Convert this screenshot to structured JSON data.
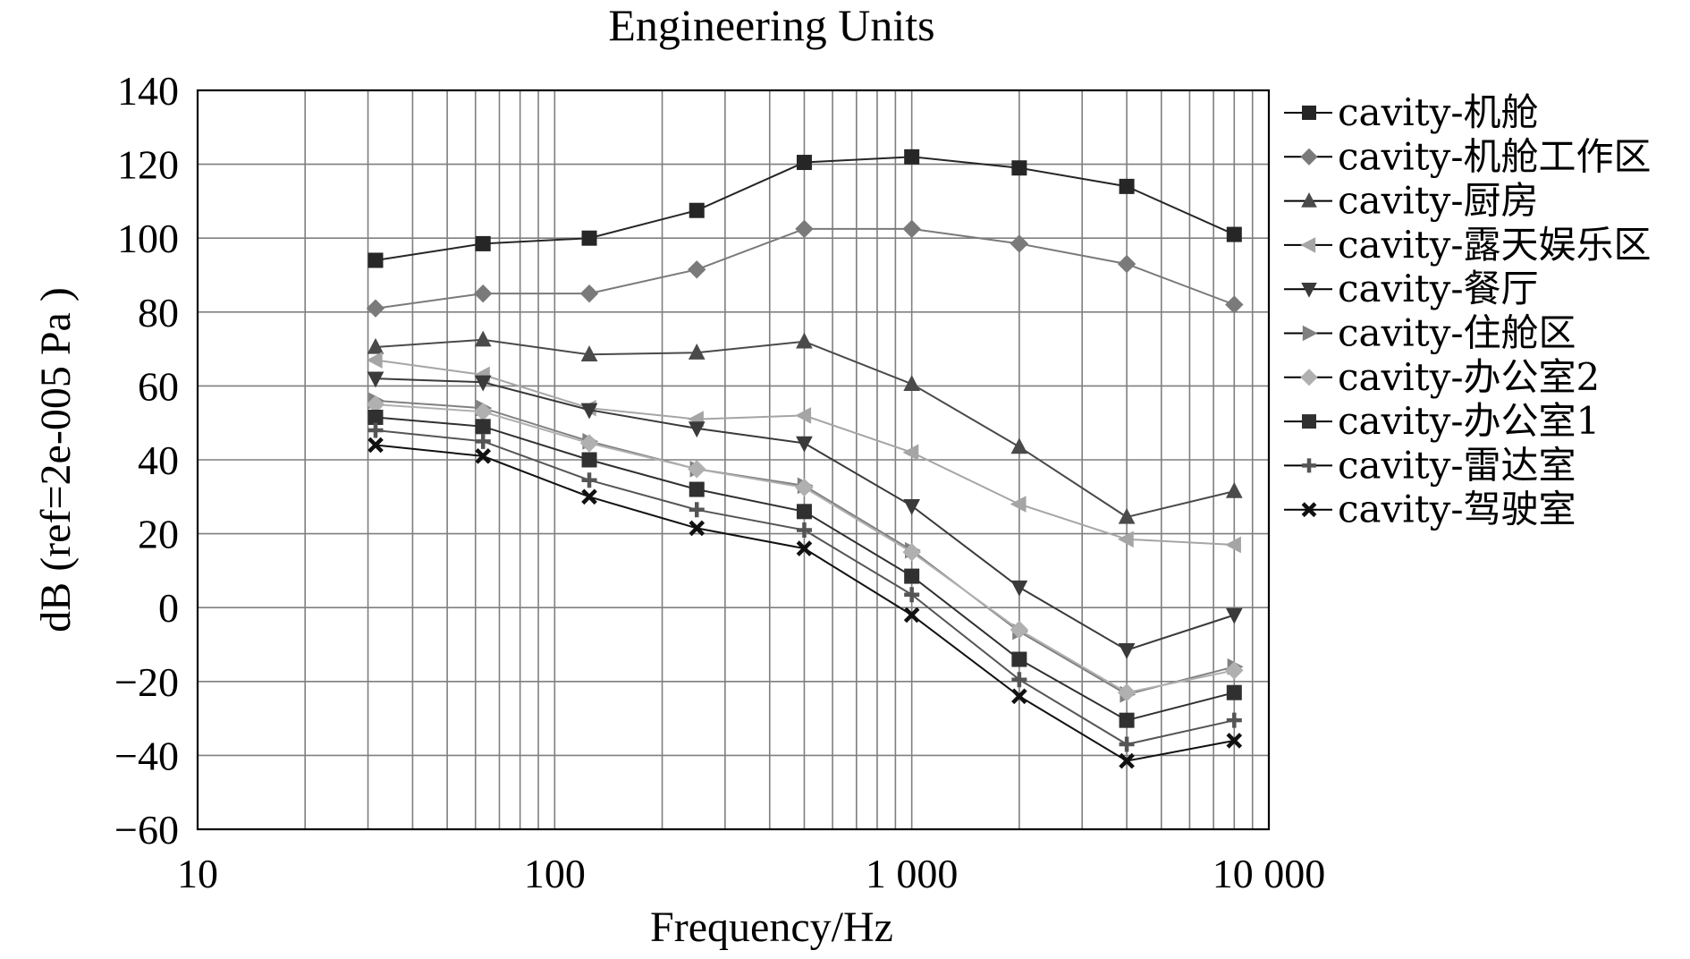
{
  "chart_data": {
    "type": "line",
    "title": "Engineering Units",
    "xlabel": "Frequency/Hz",
    "ylabel": "dB (ref=2e-005 Pa )",
    "xscale": "log",
    "xlim": [
      10,
      10000
    ],
    "ylim": [
      -60,
      140
    ],
    "xticks": [
      10,
      100,
      1000,
      10000
    ],
    "xtick_labels": [
      "10",
      "100",
      "1 000",
      "10 000"
    ],
    "yticks": [
      140,
      120,
      100,
      80,
      60,
      40,
      20,
      0,
      -20,
      -40,
      -60
    ],
    "ytick_labels": [
      "140",
      "120",
      "100",
      "80",
      "60",
      "40",
      "20",
      "0",
      "−20",
      "−40",
      "−60"
    ],
    "grid": true,
    "legend_position": "right",
    "x": [
      31.5,
      63,
      125,
      250,
      500,
      1000,
      2000,
      4000,
      8000
    ],
    "series": [
      {
        "name": "cavity-机舱",
        "marker": "square",
        "color": "#262626",
        "values": [
          94,
          98.5,
          100,
          107.5,
          120.5,
          122,
          119,
          114,
          101
        ]
      },
      {
        "name": "cavity-机舱工作区",
        "marker": "diamond",
        "color": "#7a7a7a",
        "values": [
          81,
          85,
          85,
          91.5,
          102.5,
          102.5,
          98.5,
          93,
          82
        ]
      },
      {
        "name": "cavity-厨房",
        "marker": "triangle-up",
        "color": "#4a4a4a",
        "values": [
          70.5,
          72.5,
          68.5,
          69,
          72,
          60.5,
          43.5,
          24.5,
          31.5
        ]
      },
      {
        "name": "cavity-露天娱乐区",
        "marker": "triangle-left",
        "color": "#a5a5a5",
        "values": [
          67,
          63,
          54,
          51,
          52,
          42,
          28,
          18.5,
          17
        ]
      },
      {
        "name": "cavity-餐厅",
        "marker": "triangle-down",
        "color": "#3a3a3a",
        "values": [
          62,
          61,
          53.5,
          48.5,
          44.5,
          27.5,
          5.5,
          -11.5,
          -2
        ]
      },
      {
        "name": "cavity-住舱区",
        "marker": "triangle-right",
        "color": "#808080",
        "values": [
          56,
          54,
          45,
          37.5,
          33,
          15.5,
          -6.5,
          -23.5,
          -16
        ]
      },
      {
        "name": "cavity-办公室2",
        "marker": "diamond",
        "color": "#b0b0b0",
        "values": [
          55,
          53,
          44.5,
          37.5,
          32.5,
          15,
          -6,
          -23,
          -17
        ]
      },
      {
        "name": "cavity-办公室1",
        "marker": "square",
        "color": "#303030",
        "values": [
          51.5,
          49,
          40,
          32,
          26,
          8.5,
          -14,
          -30.5,
          -23
        ]
      },
      {
        "name": "cavity-雷达室",
        "marker": "plus",
        "color": "#555555",
        "values": [
          48,
          45,
          34.5,
          26.5,
          21,
          3.5,
          -19.5,
          -37,
          -30.5
        ]
      },
      {
        "name": "cavity-驾驶室",
        "marker": "x",
        "color": "#111111",
        "values": [
          44,
          41,
          30,
          21.5,
          16,
          -2,
          -24,
          -41.5,
          -36
        ]
      }
    ]
  }
}
